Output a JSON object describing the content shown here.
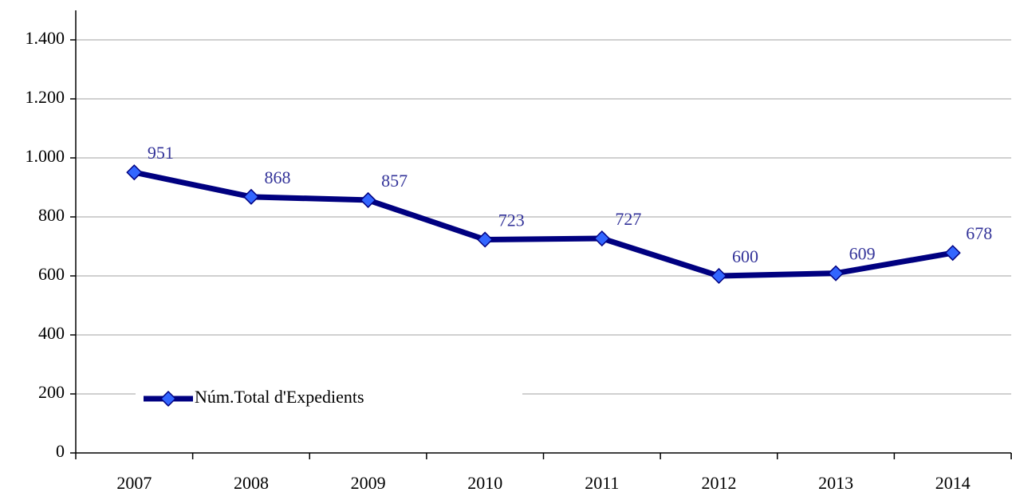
{
  "chart_data": {
    "type": "line",
    "categories": [
      "2007",
      "2008",
      "2009",
      "2010",
      "2011",
      "2012",
      "2013",
      "2014"
    ],
    "series": [
      {
        "name": "Núm.Total d'Expedients",
        "color": "#000080",
        "marker_color": "#3366ff",
        "values": [
          951,
          868,
          857,
          723,
          727,
          600,
          609,
          678
        ]
      }
    ],
    "ylim": [
      0,
      1500
    ],
    "yticks": [
      0,
      200,
      400,
      600,
      800,
      {
        "value": 1000,
        "label": "1.000"
      },
      {
        "value": 1200,
        "label": "1.200"
      },
      {
        "value": 1400,
        "label": "1.400"
      }
    ],
    "grid": true,
    "legend": "lower left"
  }
}
